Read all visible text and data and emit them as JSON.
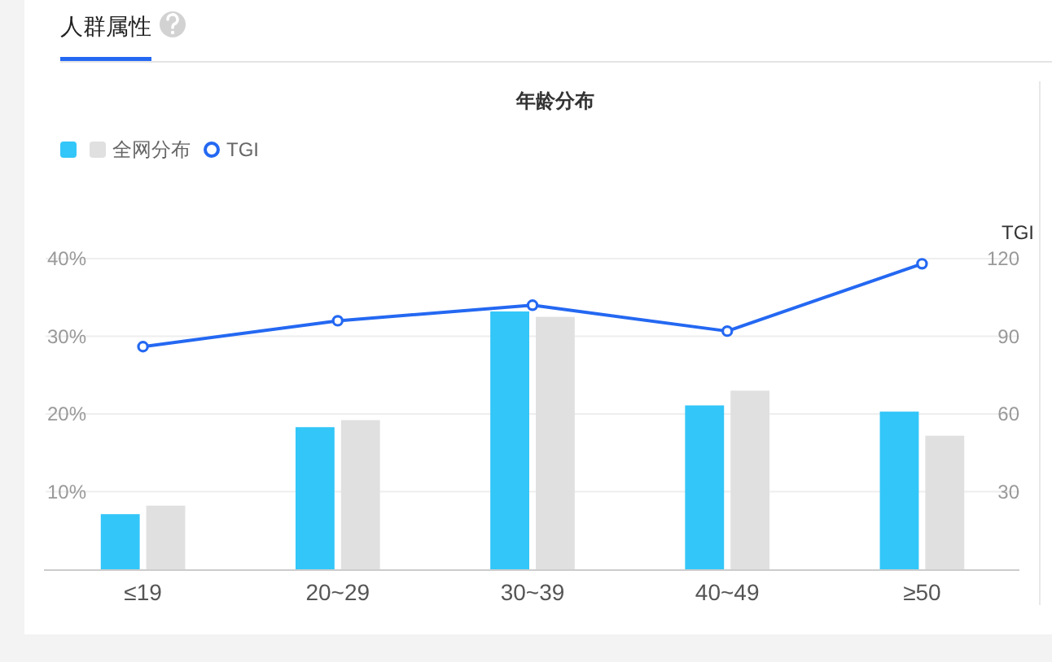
{
  "chart_data": {
    "type": "bar",
    "title": "人群属性",
    "subtitle": "年龄分布",
    "y2label": "TGI",
    "categories": [
      "≤19",
      "20~29",
      "30~39",
      "40~49",
      "≥50"
    ],
    "series": [
      {
        "color": "#33c6f8",
        "values": [
          7.1,
          18.3,
          33.2,
          21.1,
          20.3
        ]
      },
      {
        "name": "全网分布",
        "color": "#e0e0e0",
        "values": [
          8.2,
          19.2,
          32.5,
          23.0,
          17.2
        ]
      },
      {
        "name": "TGI",
        "type": "line",
        "axis": "y2",
        "color": "#2468f2",
        "values": [
          86,
          96,
          102,
          92,
          118
        ]
      }
    ],
    "ylim": [
      0,
      40
    ],
    "yticks": [
      {
        "value": 10,
        "label": "10%"
      },
      {
        "value": 20,
        "label": "20%"
      },
      {
        "value": 30,
        "label": "30%"
      },
      {
        "value": 40,
        "label": "40%"
      }
    ],
    "y2lim": [
      0,
      120
    ],
    "y2ticks": [
      30,
      60,
      90,
      120
    ],
    "grid": "y",
    "legend": "top left",
    "marker": "circle"
  }
}
